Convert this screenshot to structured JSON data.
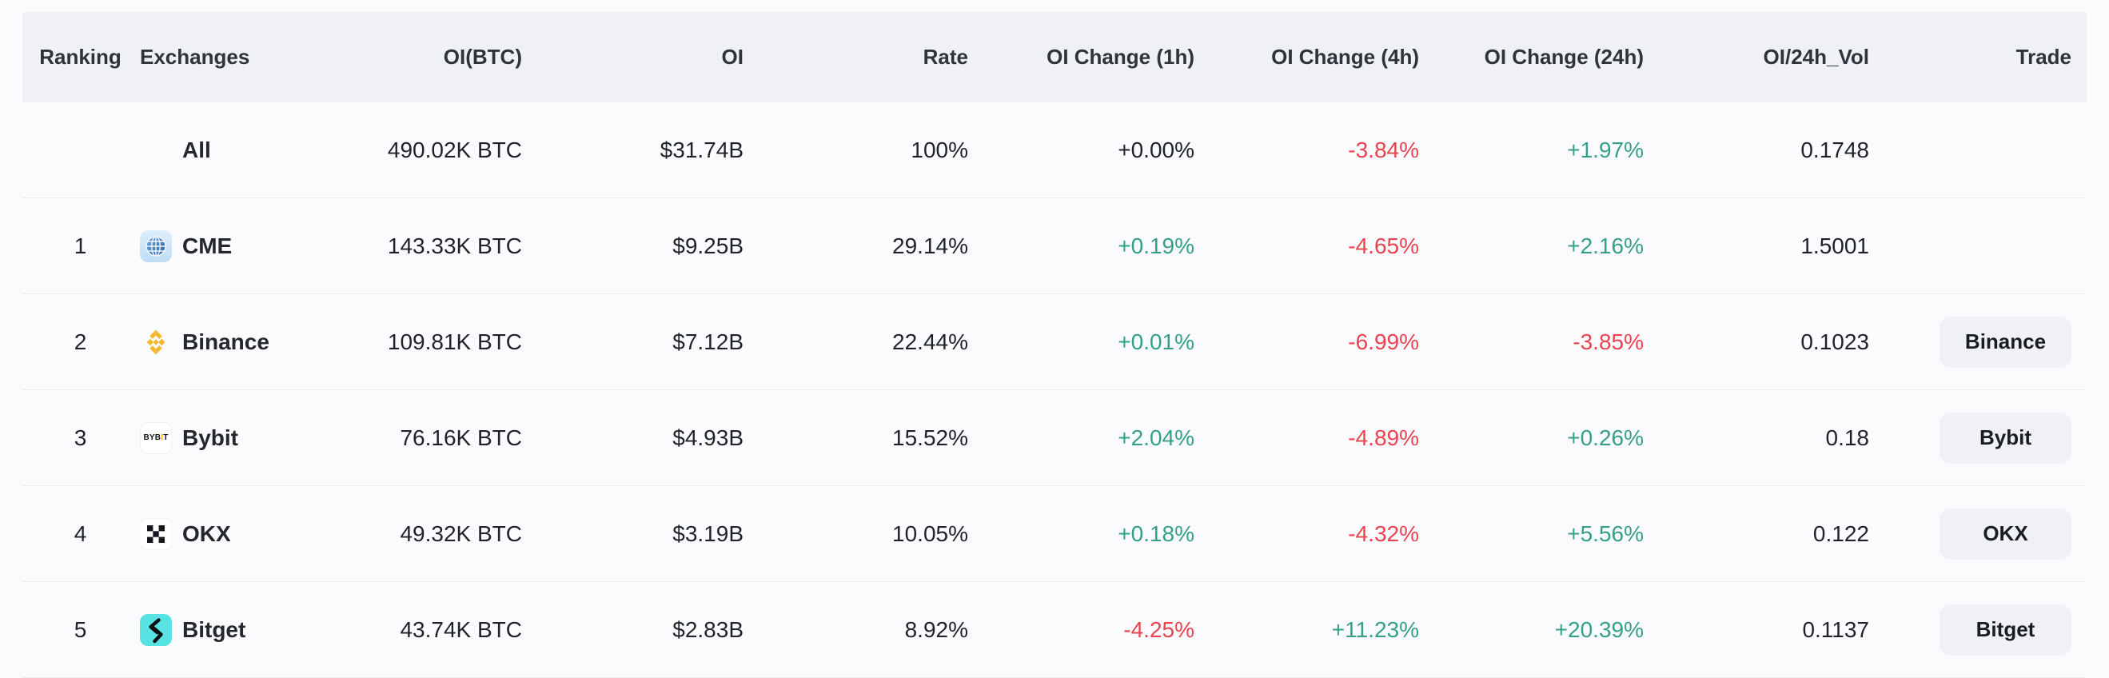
{
  "colors": {
    "up": "#35a08a",
    "down": "#e8434e",
    "neutral_text": "#1e232b",
    "header_bg": "#f0f1f5",
    "row_separator": "#ececf0",
    "trade_button_bg": "#f0f1f5",
    "binance_brand": "#f3ba2f",
    "bybit_accent": "#f7a600",
    "bitget_brand": "#57e2e4",
    "cme_blue": "#3c77b5"
  },
  "table": {
    "columns": [
      {
        "key": "ranking",
        "label": "Ranking",
        "align": "center"
      },
      {
        "key": "exchange",
        "label": "Exchanges",
        "align": "left"
      },
      {
        "key": "oi_btc",
        "label": "OI(BTC)",
        "align": "right"
      },
      {
        "key": "oi",
        "label": "OI",
        "align": "right"
      },
      {
        "key": "rate",
        "label": "Rate",
        "align": "right"
      },
      {
        "key": "chg1h",
        "label": "OI Change (1h)",
        "align": "right"
      },
      {
        "key": "chg4h",
        "label": "OI Change (4h)",
        "align": "right"
      },
      {
        "key": "chg24h",
        "label": "OI Change (24h)",
        "align": "right"
      },
      {
        "key": "oi_vol",
        "label": "OI/24h_Vol",
        "align": "right"
      },
      {
        "key": "trade",
        "label": "Trade",
        "align": "right"
      }
    ],
    "rows": [
      {
        "ranking": "",
        "exchange": "All",
        "icon": "",
        "oi_btc": "490.02K BTC",
        "oi": "$31.74B",
        "rate": "100%",
        "chg1h": {
          "text": "+0.00%",
          "dir": "flat"
        },
        "chg4h": {
          "text": "-3.84%",
          "dir": "down"
        },
        "chg24h": {
          "text": "+1.97%",
          "dir": "up"
        },
        "oi_vol": "0.1748",
        "trade": ""
      },
      {
        "ranking": "1",
        "exchange": "CME",
        "icon": "cme-globe-icon",
        "oi_btc": "143.33K BTC",
        "oi": "$9.25B",
        "rate": "29.14%",
        "chg1h": {
          "text": "+0.19%",
          "dir": "up"
        },
        "chg4h": {
          "text": "-4.65%",
          "dir": "down"
        },
        "chg24h": {
          "text": "+2.16%",
          "dir": "up"
        },
        "oi_vol": "1.5001",
        "trade": ""
      },
      {
        "ranking": "2",
        "exchange": "Binance",
        "icon": "binance-icon",
        "oi_btc": "109.81K BTC",
        "oi": "$7.12B",
        "rate": "22.44%",
        "chg1h": {
          "text": "+0.01%",
          "dir": "up"
        },
        "chg4h": {
          "text": "-6.99%",
          "dir": "down"
        },
        "chg24h": {
          "text": "-3.85%",
          "dir": "down"
        },
        "oi_vol": "0.1023",
        "trade": "Binance"
      },
      {
        "ranking": "3",
        "exchange": "Bybit",
        "icon": "bybit-icon",
        "oi_btc": "76.16K BTC",
        "oi": "$4.93B",
        "rate": "15.52%",
        "chg1h": {
          "text": "+2.04%",
          "dir": "up"
        },
        "chg4h": {
          "text": "-4.89%",
          "dir": "down"
        },
        "chg24h": {
          "text": "+0.26%",
          "dir": "up"
        },
        "oi_vol": "0.18",
        "trade": "Bybit"
      },
      {
        "ranking": "4",
        "exchange": "OKX",
        "icon": "okx-icon",
        "oi_btc": "49.32K BTC",
        "oi": "$3.19B",
        "rate": "10.05%",
        "chg1h": {
          "text": "+0.18%",
          "dir": "up"
        },
        "chg4h": {
          "text": "-4.32%",
          "dir": "down"
        },
        "chg24h": {
          "text": "+5.56%",
          "dir": "up"
        },
        "oi_vol": "0.122",
        "trade": "OKX"
      },
      {
        "ranking": "5",
        "exchange": "Bitget",
        "icon": "bitget-icon",
        "oi_btc": "43.74K BTC",
        "oi": "$2.83B",
        "rate": "8.92%",
        "chg1h": {
          "text": "-4.25%",
          "dir": "down"
        },
        "chg4h": {
          "text": "+11.23%",
          "dir": "up"
        },
        "chg24h": {
          "text": "+20.39%",
          "dir": "up"
        },
        "oi_vol": "0.1137",
        "trade": "Bitget"
      }
    ]
  }
}
